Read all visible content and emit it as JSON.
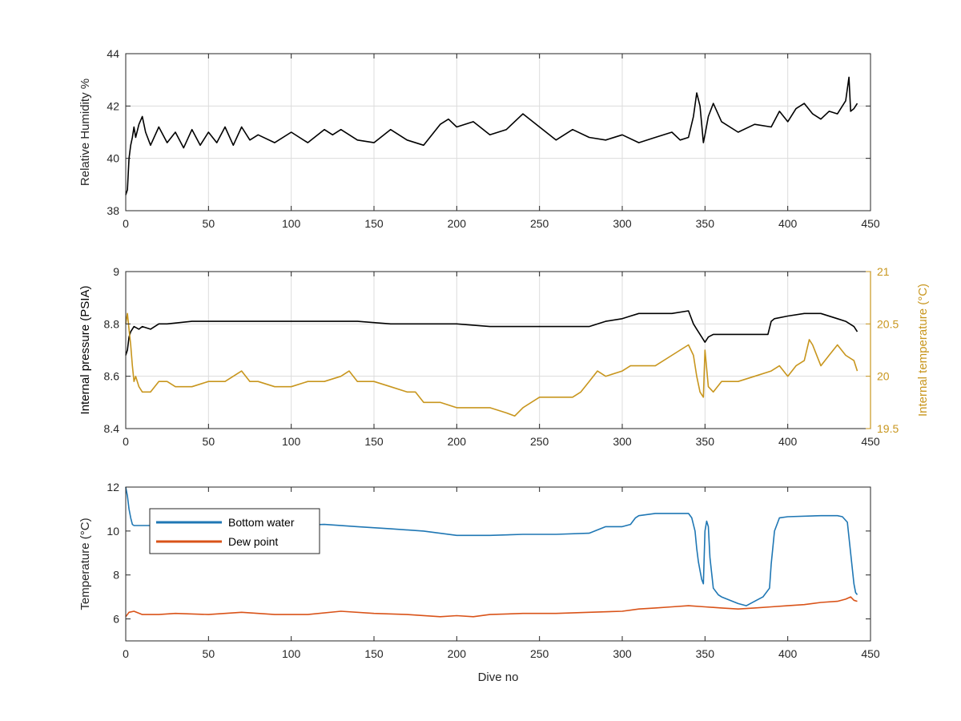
{
  "colors": {
    "black_series": "#000000",
    "internal_temperature": "#C8961E",
    "bottom_water": "#1F77B4",
    "dew_point": "#D95319",
    "grid": "#DCDCDC",
    "axes": "#262626"
  },
  "chart_data": [
    {
      "type": "line",
      "title": "",
      "xlabel": "",
      "ylabel": "Relative Humidity %",
      "xlim": [
        0,
        450
      ],
      "ylim": [
        38,
        44
      ],
      "xticks": [
        0,
        50,
        100,
        150,
        200,
        250,
        300,
        350,
        400,
        450
      ],
      "xtick_labels": [
        "0",
        "50",
        "100",
        "150",
        "200",
        "250",
        "300",
        "350",
        "400",
        "450"
      ],
      "yticks": [
        38,
        40,
        42,
        44
      ],
      "ytick_labels": [
        "38",
        "40",
        "42",
        "44"
      ],
      "grid": true,
      "series": [
        {
          "color": "#000000",
          "x": [
            0,
            1,
            2,
            3,
            4,
            5,
            6,
            8,
            10,
            12,
            15,
            20,
            25,
            30,
            35,
            40,
            45,
            50,
            55,
            60,
            65,
            70,
            75,
            80,
            90,
            100,
            110,
            120,
            125,
            130,
            140,
            150,
            160,
            170,
            180,
            190,
            195,
            200,
            210,
            220,
            230,
            240,
            250,
            260,
            270,
            280,
            290,
            300,
            310,
            320,
            330,
            335,
            340,
            343,
            345,
            347,
            349,
            350,
            352,
            355,
            360,
            370,
            380,
            390,
            395,
            400,
            405,
            410,
            415,
            420,
            425,
            430,
            435,
            437,
            438,
            440,
            442
          ],
          "y": [
            38.6,
            38.8,
            40.0,
            40.5,
            40.8,
            41.2,
            40.8,
            41.3,
            41.6,
            41.0,
            40.5,
            41.2,
            40.6,
            41.0,
            40.4,
            41.1,
            40.5,
            41.0,
            40.6,
            41.2,
            40.5,
            41.2,
            40.7,
            40.9,
            40.6,
            41.0,
            40.6,
            41.1,
            40.9,
            41.1,
            40.7,
            40.6,
            41.1,
            40.7,
            40.5,
            41.3,
            41.5,
            41.2,
            41.4,
            40.9,
            41.1,
            41.7,
            41.2,
            40.7,
            41.1,
            40.8,
            40.7,
            40.9,
            40.6,
            40.8,
            41.0,
            40.7,
            40.8,
            41.6,
            42.5,
            42.0,
            40.6,
            40.9,
            41.6,
            42.1,
            41.4,
            41.0,
            41.3,
            41.2,
            41.8,
            41.4,
            41.9,
            42.1,
            41.7,
            41.5,
            41.8,
            41.7,
            42.2,
            43.1,
            41.8,
            41.9,
            42.1
          ]
        }
      ]
    },
    {
      "type": "line",
      "title": "",
      "xlabel": "",
      "ylabel": "Internal pressure (PSIA)",
      "ylabel_right": "Internal temperature (°C)",
      "xlim": [
        0,
        450
      ],
      "ylim": [
        8.4,
        9
      ],
      "ylim_right": [
        19.5,
        21
      ],
      "xticks": [
        0,
        50,
        100,
        150,
        200,
        250,
        300,
        350,
        400,
        450
      ],
      "xtick_labels": [
        "0",
        "50",
        "100",
        "150",
        "200",
        "250",
        "300",
        "350",
        "400",
        "450"
      ],
      "yticks": [
        8.4,
        8.6,
        8.8,
        9
      ],
      "ytick_labels": [
        "8.4",
        "8.6",
        "8.8",
        "9"
      ],
      "yticks_right": [
        19.5,
        20,
        20.5,
        21
      ],
      "ytick_labels_right": [
        "19.5",
        "20",
        "20.5",
        "21"
      ],
      "grid": true,
      "series": [
        {
          "axis": "left",
          "color": "#000000",
          "x": [
            0,
            1,
            2,
            3,
            5,
            8,
            10,
            15,
            20,
            25,
            40,
            60,
            80,
            100,
            120,
            140,
            160,
            180,
            200,
            220,
            240,
            260,
            280,
            290,
            300,
            305,
            310,
            320,
            330,
            340,
            343,
            345,
            348,
            350,
            352,
            355,
            360,
            370,
            380,
            388,
            390,
            392,
            400,
            410,
            420,
            430,
            435,
            440,
            442
          ],
          "y": [
            8.68,
            8.7,
            8.75,
            8.77,
            8.79,
            8.78,
            8.79,
            8.78,
            8.8,
            8.8,
            8.81,
            8.81,
            8.81,
            8.81,
            8.81,
            8.81,
            8.8,
            8.8,
            8.8,
            8.79,
            8.79,
            8.79,
            8.79,
            8.81,
            8.82,
            8.83,
            8.84,
            8.84,
            8.84,
            8.85,
            8.8,
            8.78,
            8.75,
            8.73,
            8.75,
            8.76,
            8.76,
            8.76,
            8.76,
            8.76,
            8.81,
            8.82,
            8.83,
            8.84,
            8.84,
            8.82,
            8.81,
            8.79,
            8.77
          ]
        },
        {
          "axis": "right",
          "color": "#C8961E",
          "x": [
            0,
            1,
            2,
            3,
            4,
            5,
            6,
            8,
            10,
            15,
            20,
            25,
            30,
            40,
            50,
            60,
            70,
            75,
            80,
            90,
            100,
            110,
            120,
            130,
            135,
            140,
            150,
            160,
            170,
            175,
            180,
            190,
            200,
            210,
            220,
            230,
            235,
            240,
            250,
            260,
            270,
            275,
            280,
            285,
            290,
            300,
            305,
            310,
            320,
            330,
            335,
            340,
            343,
            345,
            347,
            349,
            350,
            352,
            355,
            360,
            370,
            380,
            390,
            395,
            400,
            405,
            410,
            413,
            415,
            420,
            425,
            430,
            435,
            440,
            442
          ],
          "y": [
            20.5,
            20.6,
            20.45,
            20.3,
            20.1,
            19.95,
            20.0,
            19.9,
            19.85,
            19.85,
            19.95,
            19.95,
            19.9,
            19.9,
            19.95,
            19.95,
            20.05,
            19.95,
            19.95,
            19.9,
            19.9,
            19.95,
            19.95,
            20.0,
            20.05,
            19.95,
            19.95,
            19.9,
            19.85,
            19.85,
            19.75,
            19.75,
            19.7,
            19.7,
            19.7,
            19.65,
            19.62,
            19.7,
            19.8,
            19.8,
            19.8,
            19.85,
            19.95,
            20.05,
            20.0,
            20.05,
            20.1,
            20.1,
            20.1,
            20.2,
            20.25,
            20.3,
            20.2,
            20.0,
            19.85,
            19.8,
            20.25,
            19.9,
            19.85,
            19.95,
            19.95,
            20.0,
            20.05,
            20.1,
            20.0,
            20.1,
            20.15,
            20.35,
            20.3,
            20.1,
            20.2,
            20.3,
            20.2,
            20.15,
            20.05
          ]
        }
      ]
    },
    {
      "type": "line",
      "title": "",
      "xlabel": "Dive no",
      "ylabel": "Temperature (°C)",
      "xlim": [
        0,
        450
      ],
      "ylim": [
        5,
        12
      ],
      "xticks": [
        0,
        50,
        100,
        150,
        200,
        250,
        300,
        350,
        400,
        450
      ],
      "xtick_labels": [
        "0",
        "50",
        "100",
        "150",
        "200",
        "250",
        "300",
        "350",
        "400",
        "450"
      ],
      "yticks": [
        6,
        8,
        10,
        12
      ],
      "ytick_labels": [
        "6",
        "8",
        "10",
        "12"
      ],
      "grid": false,
      "legend": "top-left",
      "series": [
        {
          "name": "Bottom water",
          "color": "#1F77B4",
          "x": [
            0,
            1,
            2,
            3,
            4,
            5,
            10,
            20,
            30,
            50,
            100,
            120,
            140,
            160,
            180,
            200,
            220,
            240,
            260,
            280,
            290,
            300,
            305,
            308,
            310,
            320,
            330,
            340,
            342,
            344,
            345,
            346,
            347,
            348,
            349,
            350,
            351,
            352,
            353,
            355,
            358,
            360,
            370,
            375,
            380,
            385,
            389,
            390,
            392,
            395,
            400,
            420,
            430,
            433,
            436,
            438,
            440,
            441,
            442
          ],
          "y": [
            12.0,
            11.6,
            11.0,
            10.6,
            10.3,
            10.25,
            10.25,
            10.25,
            10.25,
            10.25,
            10.25,
            10.3,
            10.2,
            10.1,
            10.0,
            9.8,
            9.8,
            9.85,
            9.85,
            9.9,
            10.2,
            10.2,
            10.3,
            10.6,
            10.7,
            10.8,
            10.8,
            10.8,
            10.6,
            10.0,
            9.2,
            8.6,
            8.2,
            7.8,
            7.6,
            10.0,
            10.45,
            10.2,
            8.8,
            7.4,
            7.1,
            7.0,
            6.7,
            6.6,
            6.8,
            7.0,
            7.4,
            8.5,
            10.0,
            10.6,
            10.65,
            10.7,
            10.7,
            10.65,
            10.4,
            9.0,
            7.6,
            7.2,
            7.1
          ]
        },
        {
          "name": "Dew point",
          "color": "#D95319",
          "x": [
            0,
            2,
            5,
            10,
            20,
            30,
            50,
            70,
            90,
            110,
            130,
            150,
            170,
            190,
            200,
            210,
            220,
            240,
            260,
            280,
            300,
            310,
            320,
            330,
            340,
            350,
            360,
            370,
            380,
            390,
            400,
            410,
            420,
            430,
            435,
            438,
            440,
            442
          ],
          "y": [
            6.1,
            6.3,
            6.35,
            6.2,
            6.2,
            6.25,
            6.2,
            6.3,
            6.2,
            6.2,
            6.35,
            6.25,
            6.2,
            6.1,
            6.15,
            6.1,
            6.2,
            6.25,
            6.25,
            6.3,
            6.35,
            6.45,
            6.5,
            6.55,
            6.6,
            6.55,
            6.5,
            6.45,
            6.5,
            6.55,
            6.6,
            6.65,
            6.75,
            6.8,
            6.9,
            7.0,
            6.85,
            6.8
          ]
        }
      ]
    }
  ]
}
